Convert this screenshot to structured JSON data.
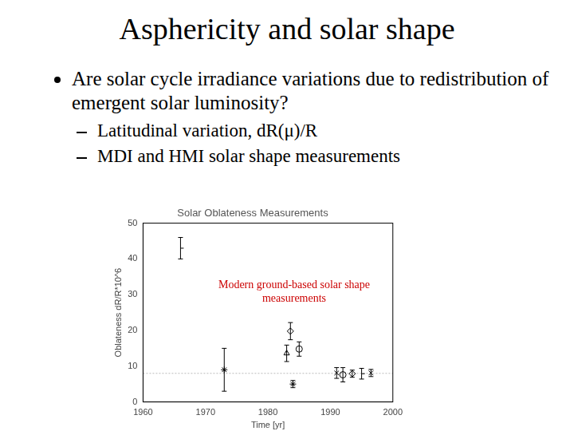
{
  "slide": {
    "title": "Asphericity and solar shape",
    "bullets": [
      {
        "text": "Are solar cycle irradiance variations due to redistribution of emergent solar luminosity?",
        "sub": [
          "Latitudinal variation, dR(μ)/R",
          "MDI and HMI solar shape measurements"
        ]
      }
    ]
  },
  "chart_data": {
    "type": "scatter",
    "title": "Solar Oblateness Measurements",
    "x_label": "Time [yr]",
    "y_label": "Oblateness dR/R*10^6",
    "annotation": "Modern ground-based solar shape measurements",
    "xlim": [
      1960,
      2000
    ],
    "xticks": [
      1960,
      1970,
      1980,
      1990,
      2000
    ],
    "ylim": [
      0,
      50
    ],
    "yticks": [
      0,
      10,
      20,
      30,
      40,
      50
    ],
    "grid": false,
    "reference_line": 8,
    "series": [
      {
        "marker": "dash",
        "color": "#000000",
        "x": [
          1966
        ],
        "values": [
          43
        ],
        "errors": [
          3
        ]
      },
      {
        "marker": "star",
        "color": "#000000",
        "x": [
          1973
        ],
        "values": [
          9
        ],
        "errors": [
          6
        ]
      },
      {
        "marker": "triangle",
        "color": "#000000",
        "x": [
          1983
        ],
        "values": [
          13.6
        ],
        "errors": [
          2.3
        ]
      },
      {
        "marker": "rectRot",
        "color": "#000000",
        "x": [
          1983.6
        ],
        "values": [
          19.8
        ],
        "errors": [
          2.4
        ]
      },
      {
        "marker": "star",
        "color": "#000000",
        "x": [
          1984
        ],
        "values": [
          5
        ],
        "errors": [
          1
        ]
      },
      {
        "marker": "circle",
        "color": "#000000",
        "x": [
          1985
        ],
        "values": [
          14.8
        ],
        "errors": [
          2
        ]
      },
      {
        "marker": "crossRot",
        "color": "#000000",
        "x": [
          1991,
          1996.5
        ],
        "values": [
          8.1,
          8.1
        ],
        "errors": [
          1.5,
          1
        ]
      },
      {
        "marker": "circle",
        "color": "#000000",
        "x": [
          1992
        ],
        "values": [
          7.6
        ],
        "errors": [
          2
        ]
      },
      {
        "marker": "rectRot",
        "color": "#000000",
        "x": [
          1993.5
        ],
        "values": [
          7.9
        ],
        "errors": [
          1
        ]
      },
      {
        "marker": "dash",
        "color": "#000000",
        "x": [
          1995
        ],
        "values": [
          7.9
        ],
        "errors": [
          1.5
        ]
      }
    ]
  }
}
